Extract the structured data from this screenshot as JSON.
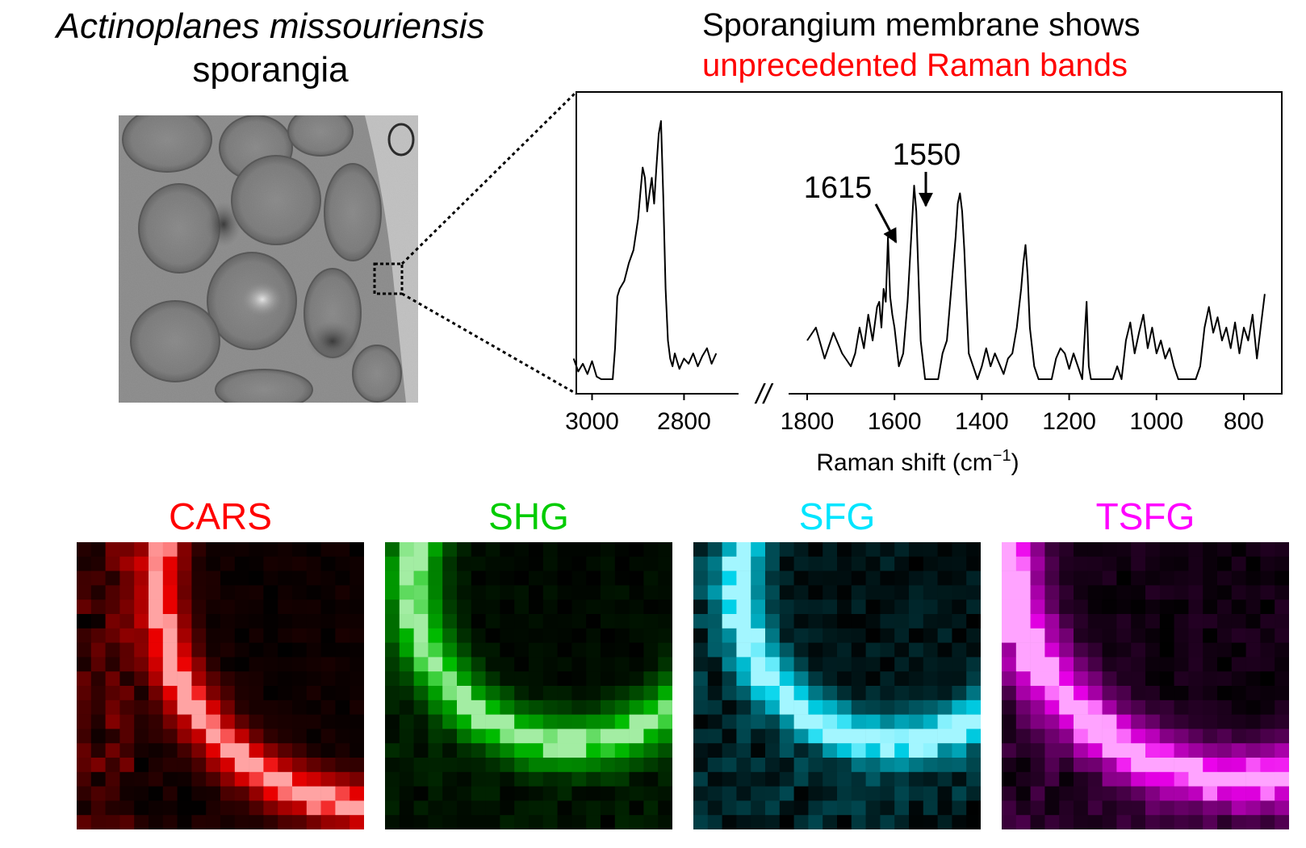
{
  "left_panel": {
    "species": "Actinoplanes missouriensis",
    "subtitle": "sporangia"
  },
  "spectrum_header": {
    "line1": "Sporangium membrane shows",
    "line2": "unprecedented Raman bands",
    "line1_color": "#000000",
    "line2_color": "#ff0000"
  },
  "chart_data": {
    "type": "line",
    "xlabel": "Raman shift (cm",
    "xlabel_sup": "−1",
    "xlabel_close": ")",
    "x_reversed": true,
    "segments": [
      {
        "xlim": [
          3050,
          2720
        ],
        "ticks": [
          3000,
          2800
        ]
      },
      {
        "xlim": [
          1800,
          750
        ],
        "ticks": [
          1800,
          1600,
          1400,
          1200,
          1000,
          800
        ]
      }
    ],
    "axis_break_mark": "//",
    "annotations": [
      {
        "label": "1615",
        "x": 1615
      },
      {
        "label": "1550",
        "x": 1550
      }
    ],
    "series": [
      {
        "x": [
          3040,
          3030,
          3020,
          3010,
          3000,
          2990,
          2980,
          2970,
          2960,
          2955,
          2950,
          2945,
          2940,
          2930,
          2920,
          2910,
          2900,
          2895,
          2890,
          2885,
          2880,
          2875,
          2870,
          2865,
          2860,
          2855,
          2850,
          2845,
          2840,
          2835,
          2830,
          2825,
          2820,
          2810,
          2800,
          2790,
          2780,
          2770,
          2760,
          2750,
          2740,
          2730
        ],
        "y": [
          0.08,
          0.03,
          0.06,
          0.02,
          0.07,
          0.01,
          0.0,
          0.0,
          0.0,
          0.0,
          0.12,
          0.32,
          0.35,
          0.38,
          0.45,
          0.5,
          0.62,
          0.72,
          0.82,
          0.78,
          0.65,
          0.72,
          0.78,
          0.68,
          0.82,
          0.95,
          1.0,
          0.7,
          0.35,
          0.15,
          0.08,
          0.05,
          0.1,
          0.04,
          0.08,
          0.06,
          0.1,
          0.05,
          0.09,
          0.12,
          0.06,
          0.1
        ]
      },
      {
        "x": [
          1800,
          1780,
          1760,
          1740,
          1720,
          1700,
          1690,
          1680,
          1670,
          1660,
          1650,
          1640,
          1635,
          1630,
          1625,
          1620,
          1615,
          1610,
          1605,
          1600,
          1590,
          1580,
          1570,
          1565,
          1560,
          1555,
          1550,
          1545,
          1540,
          1530,
          1520,
          1510,
          1500,
          1490,
          1480,
          1470,
          1460,
          1455,
          1450,
          1445,
          1440,
          1435,
          1430,
          1420,
          1410,
          1400,
          1390,
          1380,
          1370,
          1360,
          1350,
          1340,
          1330,
          1320,
          1310,
          1305,
          1300,
          1295,
          1290,
          1280,
          1270,
          1260,
          1250,
          1240,
          1230,
          1220,
          1210,
          1200,
          1190,
          1180,
          1170,
          1160,
          1155,
          1150,
          1140,
          1130,
          1120,
          1110,
          1100,
          1090,
          1080,
          1070,
          1060,
          1050,
          1040,
          1030,
          1020,
          1010,
          1000,
          990,
          980,
          970,
          960,
          950,
          940,
          930,
          920,
          910,
          900,
          890,
          880,
          870,
          860,
          850,
          840,
          830,
          820,
          810,
          800,
          790,
          780,
          770,
          760,
          752
        ],
        "y": [
          0.15,
          0.2,
          0.08,
          0.18,
          0.1,
          0.05,
          0.1,
          0.2,
          0.12,
          0.25,
          0.15,
          0.28,
          0.3,
          0.2,
          0.35,
          0.3,
          0.55,
          0.32,
          0.25,
          0.2,
          0.05,
          0.1,
          0.3,
          0.45,
          0.6,
          0.75,
          0.65,
          0.4,
          0.15,
          0.0,
          0.0,
          0.0,
          0.0,
          0.1,
          0.15,
          0.35,
          0.55,
          0.68,
          0.72,
          0.65,
          0.5,
          0.3,
          0.1,
          0.05,
          0.0,
          0.05,
          0.12,
          0.05,
          0.1,
          0.06,
          0.02,
          0.08,
          0.1,
          0.2,
          0.35,
          0.45,
          0.52,
          0.4,
          0.2,
          0.05,
          0.0,
          0.0,
          0.0,
          0.0,
          0.08,
          0.12,
          0.1,
          0.04,
          0.1,
          0.05,
          0.0,
          0.3,
          0.05,
          0.0,
          0.0,
          0.0,
          0.0,
          0.0,
          0.0,
          0.05,
          0.0,
          0.15,
          0.22,
          0.1,
          0.18,
          0.25,
          0.12,
          0.2,
          0.1,
          0.15,
          0.08,
          0.12,
          0.05,
          0.0,
          0.0,
          0.0,
          0.0,
          0.0,
          0.05,
          0.2,
          0.28,
          0.18,
          0.24,
          0.15,
          0.2,
          0.12,
          0.22,
          0.1,
          0.2,
          0.15,
          0.25,
          0.08,
          0.22,
          0.33
        ]
      }
    ]
  },
  "panels": [
    {
      "label": "CARS",
      "color": "#ff0000"
    },
    {
      "label": "SHG",
      "color": "#00cc00"
    },
    {
      "label": "SFG",
      "color": "#00e5ff"
    },
    {
      "label": "TSFG",
      "color": "#ff00ff"
    }
  ]
}
